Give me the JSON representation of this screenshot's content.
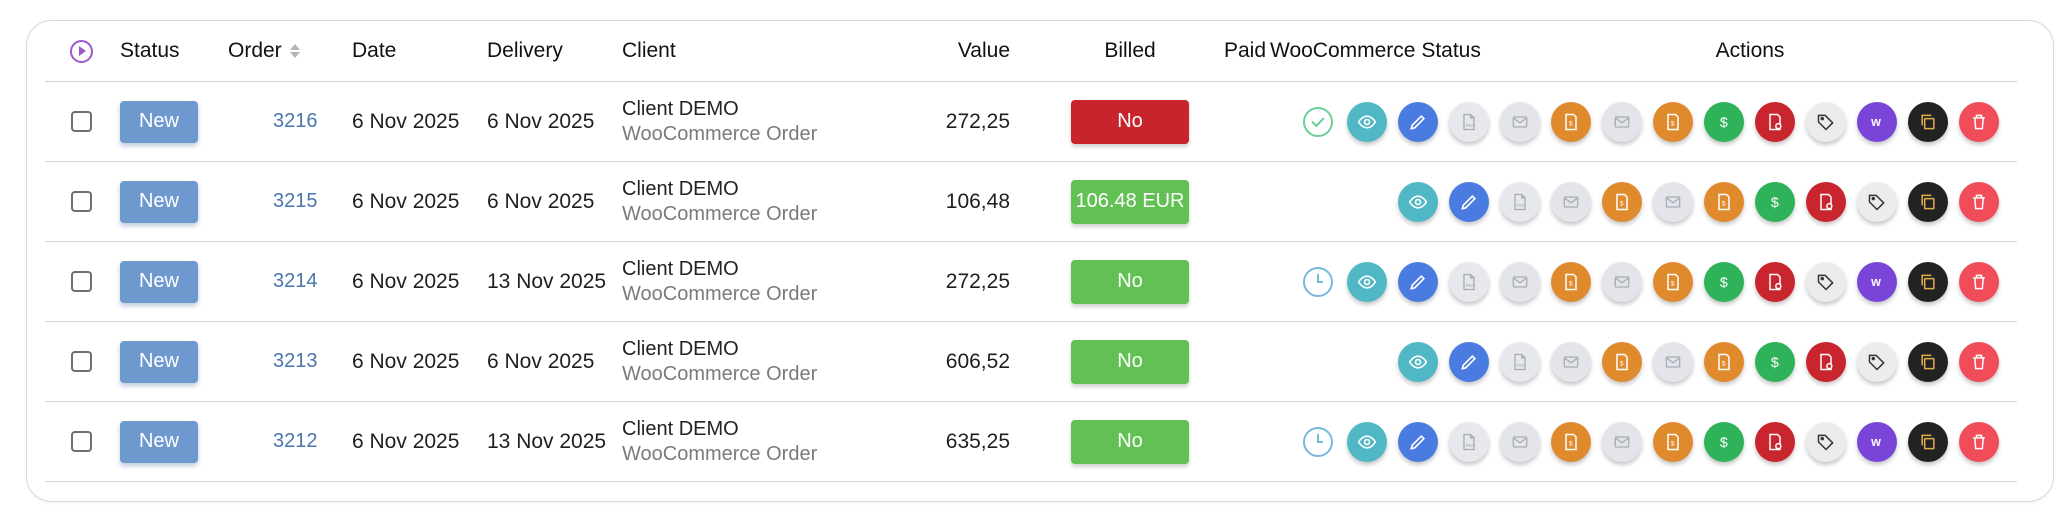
{
  "headers": {
    "status": "Status",
    "order": "Order",
    "date": "Date",
    "delivery": "Delivery",
    "client": "Client",
    "value": "Value",
    "billed": "Billed",
    "paid": "Paid",
    "woo_status": "WooCommerce Status",
    "actions": "Actions"
  },
  "colors": {
    "view": "#4fb8c4",
    "edit": "#4a7be0",
    "pdf": "#e6e8ee",
    "email": "#e3e5ea",
    "doc": "#e08a2e",
    "pay": "#2fb35a",
    "refund": "#c9252e",
    "tag": "#ececec",
    "woo": "#7b44d9",
    "copy": "#222222",
    "delete": "#f04c59",
    "billed_red": "#c8242c",
    "billed_green": "#62c055"
  },
  "rows": [
    {
      "status": "New",
      "order": "3216",
      "date": "6 Nov 2025",
      "delivery": "6 Nov 2025",
      "client_name": "Client DEMO",
      "client_sub": "WooCommerce Order",
      "value": "272,25",
      "billed": "No",
      "billed_color": "#c8242c",
      "woo_icon": "check-circle-icon",
      "has_woo_action": true
    },
    {
      "status": "New",
      "order": "3215",
      "date": "6 Nov 2025",
      "delivery": "6 Nov 2025",
      "client_name": "Client DEMO",
      "client_sub": "WooCommerce Order",
      "value": "106,48",
      "billed": "106.48 EUR",
      "billed_color": "#62c055",
      "woo_icon": "",
      "has_woo_action": false
    },
    {
      "status": "New",
      "order": "3214",
      "date": "6 Nov 2025",
      "delivery": "13 Nov 2025",
      "client_name": "Client DEMO",
      "client_sub": "WooCommerce Order",
      "value": "272,25",
      "billed": "No",
      "billed_color": "#62c055",
      "woo_icon": "clock-icon",
      "has_woo_action": true
    },
    {
      "status": "New",
      "order": "3213",
      "date": "6 Nov 2025",
      "delivery": "6 Nov 2025",
      "client_name": "Client DEMO",
      "client_sub": "WooCommerce Order",
      "value": "606,52",
      "billed": "No",
      "billed_color": "#62c055",
      "woo_icon": "",
      "has_woo_action": false
    },
    {
      "status": "New",
      "order": "3212",
      "date": "6 Nov 2025",
      "delivery": "13 Nov 2025",
      "client_name": "Client DEMO",
      "client_sub": "WooCommerce Order",
      "value": "635,25",
      "billed": "No",
      "billed_color": "#62c055",
      "woo_icon": "clock-icon",
      "has_woo_action": true
    }
  ],
  "actions": [
    {
      "icon": "eye-icon",
      "color_key": "view",
      "woo_only": false
    },
    {
      "icon": "pencil-icon",
      "color_key": "edit",
      "woo_only": false
    },
    {
      "icon": "pdf-icon",
      "color_key": "pdf",
      "woo_only": false
    },
    {
      "icon": "mail-icon",
      "color_key": "email",
      "woo_only": false
    },
    {
      "icon": "invoice-icon",
      "color_key": "doc",
      "woo_only": false
    },
    {
      "icon": "mail-icon",
      "color_key": "email",
      "woo_only": false
    },
    {
      "icon": "invoice-icon",
      "color_key": "doc",
      "woo_only": false
    },
    {
      "icon": "dollar-icon",
      "color_key": "pay",
      "woo_only": false
    },
    {
      "icon": "refund-icon",
      "color_key": "refund",
      "woo_only": false
    },
    {
      "icon": "tag-icon",
      "color_key": "tag",
      "woo_only": false
    },
    {
      "icon": "woo-icon",
      "color_key": "woo",
      "woo_only": true
    },
    {
      "icon": "copy-icon",
      "color_key": "copy",
      "woo_only": false
    },
    {
      "icon": "trash-icon",
      "color_key": "delete",
      "woo_only": false
    }
  ]
}
